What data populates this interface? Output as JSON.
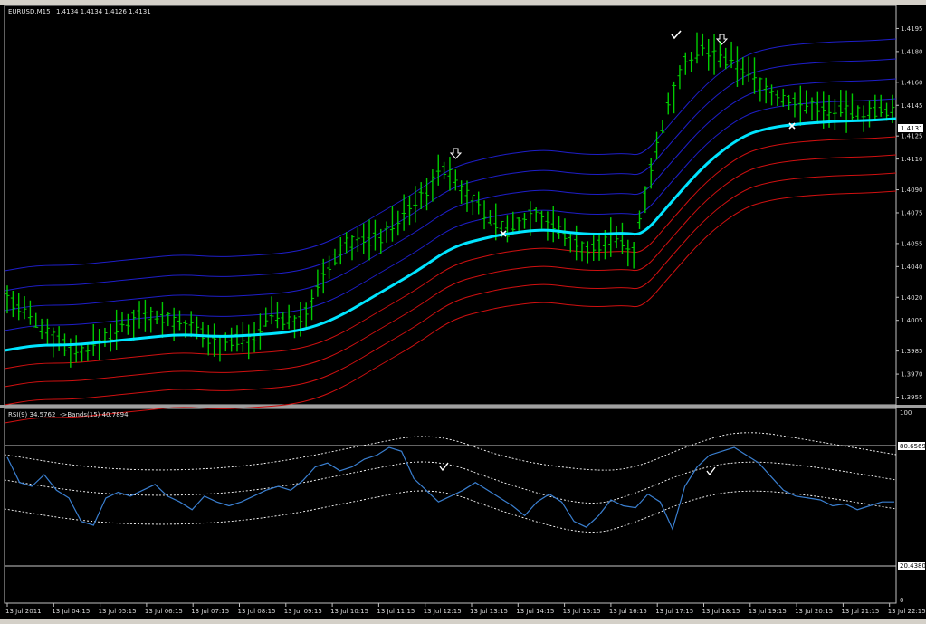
{
  "chart_window": {
    "symbol_title": "EURUSD,M15",
    "ohlc_text": "1.4134 1.4134 1.4126 1.4131"
  },
  "main_pane": {
    "price_ticks": [
      "1.4195",
      "1.4180",
      "1.4160",
      "1.4145",
      "1.4125",
      "1.4110",
      "1.4090",
      "1.4075",
      "1.4055",
      "1.4040",
      "1.4020",
      "1.4005",
      "1.3985",
      "1.3970",
      "1.3955"
    ],
    "current_price_label": "1.4131",
    "ylim": [
      1.395,
      1.421
    ],
    "colors": {
      "candle": "#00cc00",
      "midline": "#00e5ff",
      "upper_band": "#1e1ec8",
      "lower_band": "#d01010"
    }
  },
  "rsi_pane": {
    "title": "RSI(9) 34.5762",
    "bands_text": "->Bands(15) 40.7894",
    "scale_top": "100",
    "scale_bottom": "0",
    "upper_level": "80.6569",
    "lower_level": "20.4380",
    "colors": {
      "rsi_line": "#3a7fd0",
      "band_line": "#ffffff",
      "level_line": "#c8c8c8"
    }
  },
  "time_axis": [
    "13 Jul 2011",
    "13 Jul 04:15",
    "13 Jul 05:15",
    "13 Jul 06:15",
    "13 Jul 07:15",
    "13 Jul 08:15",
    "13 Jul 09:15",
    "13 Jul 10:15",
    "13 Jul 11:15",
    "13 Jul 12:15",
    "13 Jul 13:15",
    "13 Jul 14:15",
    "13 Jul 15:15",
    "13 Jul 16:15",
    "13 Jul 17:15",
    "13 Jul 18:15",
    "13 Jul 19:15",
    "13 Jul 20:15",
    "13 Jul 21:15",
    "13 Jul 22:15"
  ],
  "chart_data": {
    "type": "line",
    "x": [
      "13 Jul 2011",
      "13 Jul 04:15",
      "13 Jul 05:15",
      "13 Jul 06:15",
      "13 Jul 07:15",
      "13 Jul 08:15",
      "13 Jul 09:15",
      "13 Jul 10:15",
      "13 Jul 11:15",
      "13 Jul 12:15",
      "13 Jul 13:15",
      "13 Jul 14:15",
      "13 Jul 15:15",
      "13 Jul 16:15",
      "13 Jul 17:15",
      "13 Jul 18:15",
      "13 Jul 19:15",
      "13 Jul 20:15",
      "13 Jul 21:15",
      "13 Jul 22:15"
    ],
    "series": [
      {
        "values": [
          1.3989,
          1.399,
          1.3992,
          1.3996,
          1.3994,
          1.3998,
          1.4006,
          1.403,
          1.405,
          1.406,
          1.4063,
          1.4066,
          1.4064,
          1.4066,
          1.409,
          1.411,
          1.4124,
          1.4128,
          1.413,
          1.4131
        ]
      }
    ],
    "ylim": [
      1.395,
      1.421
    ]
  }
}
